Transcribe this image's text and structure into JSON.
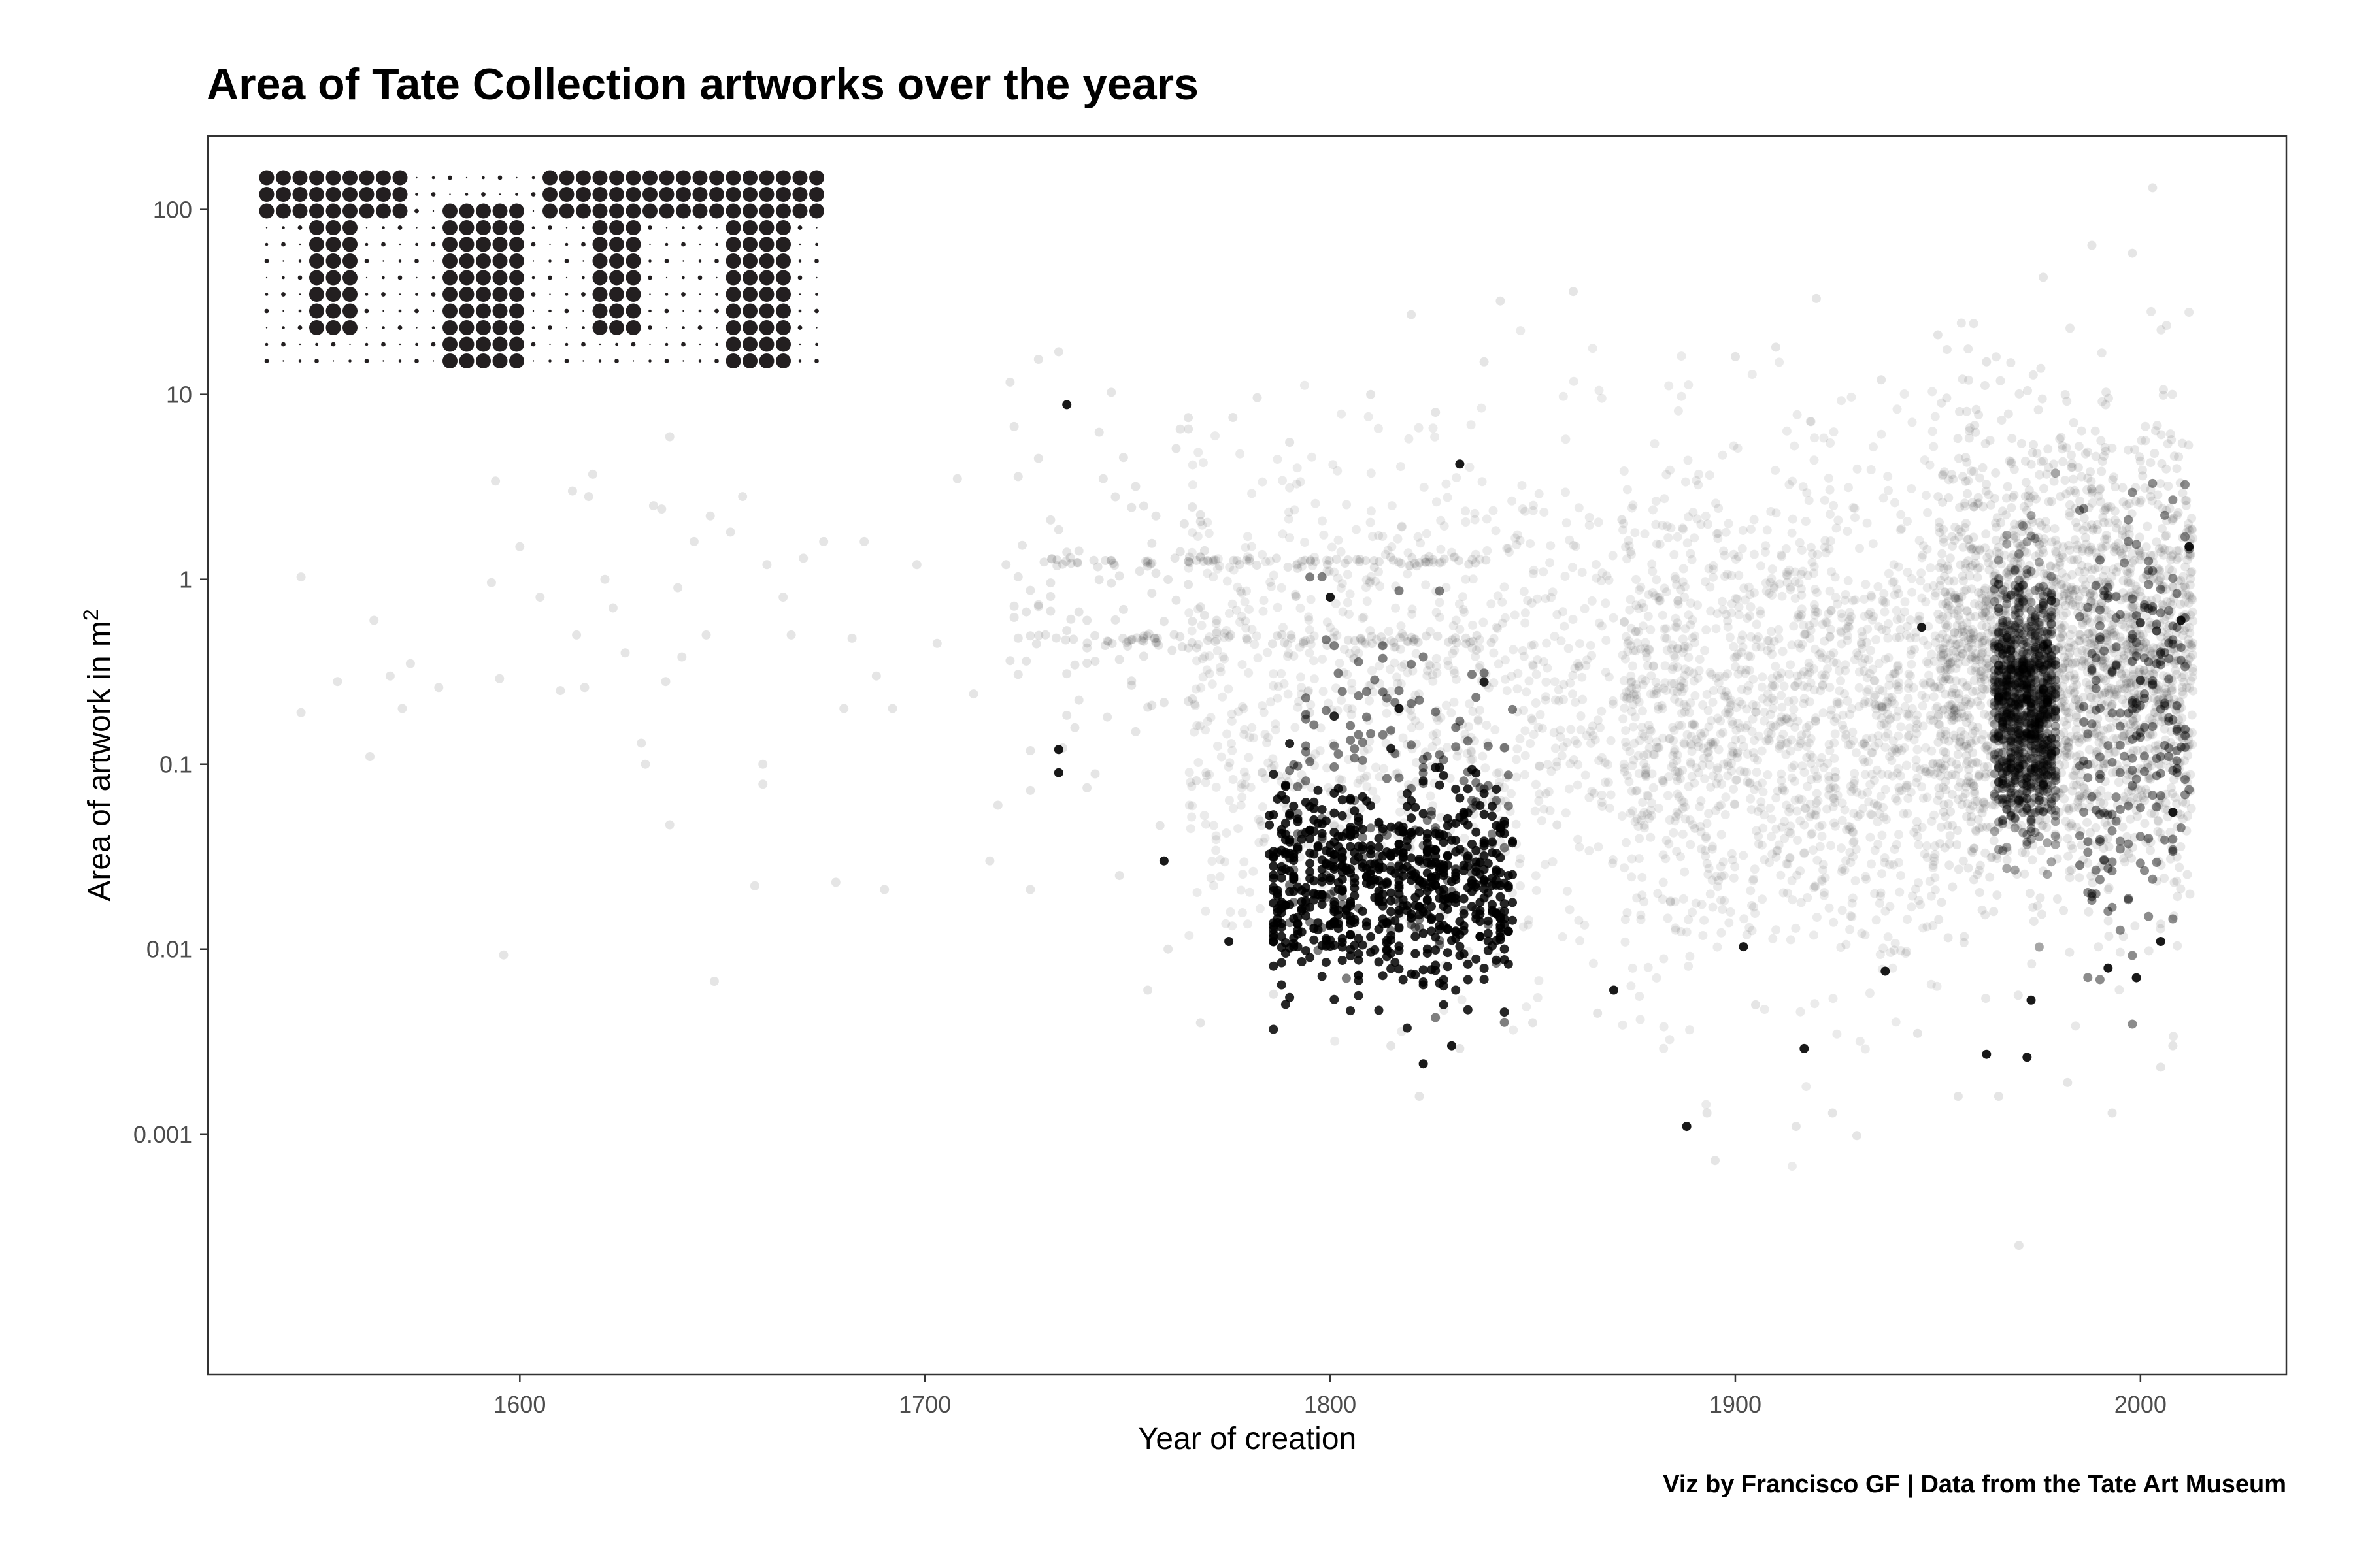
{
  "chart_data": {
    "type": "scatter",
    "title": "Area of Tate Collection artworks over the years",
    "xlabel": "Year of creation",
    "ylabel_text": "Area of artwork in  m",
    "ylabel_superscript": "2",
    "caption": "Viz by Francisco GF | Data from the Tate Art Museum",
    "x_scale": "linear",
    "y_scale": "log10",
    "xlim": [
      1523,
      2036
    ],
    "ylim": [
      5e-05,
      250
    ],
    "x_ticks": [
      1600,
      1700,
      1800,
      1900,
      2000
    ],
    "x_tick_labels": [
      "1600",
      "1700",
      "1800",
      "1900",
      "2000"
    ],
    "y_ticks": [
      0.001,
      0.01,
      0.1,
      1,
      10,
      100
    ],
    "y_tick_labels": [
      "0.001",
      "0.01",
      "0.1",
      "1",
      "10",
      "100"
    ],
    "grid": false,
    "panel_border": true,
    "point_color": "#000000",
    "halftone_logo": "TATE",
    "series": [
      {
        "style": "translucent",
        "opacity": 0.1,
        "points": [
          [
            1546,
            1.03
          ],
          [
            1546,
            0.19
          ],
          [
            1555,
            0.28
          ],
          [
            1563,
            0.11
          ],
          [
            1564,
            0.6
          ],
          [
            1568,
            0.3
          ],
          [
            1571,
            0.2
          ],
          [
            1573,
            0.35
          ],
          [
            1580,
            0.26
          ],
          [
            1593,
            0.96
          ],
          [
            1594,
            3.4
          ],
          [
            1595,
            0.29
          ],
          [
            1596,
            0.0093
          ],
          [
            1600,
            1.5
          ],
          [
            1605,
            0.8
          ],
          [
            1610,
            0.25
          ],
          [
            1613,
            3.0
          ],
          [
            1614,
            0.5
          ],
          [
            1616,
            0.26
          ],
          [
            1617,
            2.8
          ],
          [
            1618,
            3.7
          ],
          [
            1621,
            1.0
          ],
          [
            1623,
            0.7
          ],
          [
            1626,
            0.4
          ],
          [
            1630,
            0.13
          ],
          [
            1631,
            0.1
          ],
          [
            1633,
            2.5
          ],
          [
            1635,
            2.4
          ],
          [
            1636,
            0.28
          ],
          [
            1637,
            5.9
          ],
          [
            1637,
            0.047
          ],
          [
            1639,
            0.9
          ],
          [
            1640,
            0.38
          ],
          [
            1643,
            1.6
          ],
          [
            1646,
            0.5
          ],
          [
            1647,
            2.2
          ],
          [
            1648,
            0.0067
          ],
          [
            1652,
            1.8
          ],
          [
            1655,
            2.8
          ],
          [
            1658,
            0.022
          ],
          [
            1660,
            0.1
          ],
          [
            1660,
            0.078
          ],
          [
            1661,
            1.2
          ],
          [
            1665,
            0.8
          ],
          [
            1667,
            0.5
          ],
          [
            1670,
            1.3
          ],
          [
            1675,
            1.6
          ],
          [
            1678,
            0.023
          ],
          [
            1680,
            0.2
          ],
          [
            1682,
            0.48
          ],
          [
            1685,
            1.6
          ],
          [
            1688,
            0.3
          ],
          [
            1690,
            0.021
          ],
          [
            1692,
            0.2
          ],
          [
            1698,
            1.2
          ],
          [
            1703,
            0.45
          ],
          [
            1708,
            3.5
          ],
          [
            1712,
            0.24
          ],
          [
            1716,
            0.03
          ],
          [
            1718,
            0.06
          ],
          [
            1720,
            1.2
          ],
          [
            1722,
            6.7
          ],
          [
            1726,
            0.021
          ],
          [
            1733,
            17
          ],
          [
            1733,
            0.12
          ],
          [
            1735,
            1.4
          ],
          [
            1740,
            0.6
          ],
          [
            1744,
            3.5
          ],
          [
            1748,
            0.025
          ],
          [
            1752,
            0.15
          ],
          [
            1755,
            0.006
          ],
          [
            1757,
            2.2
          ],
          [
            1760,
            0.01
          ],
          [
            1765,
            6.5
          ],
          [
            1768,
            0.004
          ],
          [
            1772,
            0.6
          ],
          [
            1776,
            7.5
          ],
          [
            1782,
            9.6
          ],
          [
            1786,
            0.0057
          ],
          [
            1790,
            5.5
          ],
          [
            1795,
            0.19
          ],
          [
            1810,
            10
          ],
          [
            1815,
            0.003
          ],
          [
            1820,
            27
          ],
          [
            1822,
            0.0016
          ],
          [
            1826,
            8
          ],
          [
            1832,
            0.0029
          ],
          [
            1838,
            15
          ],
          [
            1842,
            32
          ],
          [
            1850,
            0.004
          ],
          [
            1856,
            0.047
          ],
          [
            1860,
            36
          ],
          [
            1866,
            0.0045
          ],
          [
            1872,
            2.1
          ],
          [
            1878,
            0.4
          ],
          [
            1884,
            0.018
          ],
          [
            1890,
            0.045
          ],
          [
            1893,
            0.0013
          ],
          [
            1895,
            0.00072
          ],
          [
            1900,
            16
          ],
          [
            1905,
            0.005
          ],
          [
            1910,
            18
          ],
          [
            1915,
            0.0011
          ],
          [
            1920,
            33
          ],
          [
            1924,
            0.0013
          ],
          [
            1930,
            0.00098
          ],
          [
            1936,
            12
          ],
          [
            1945,
            0.0035
          ],
          [
            1950,
            21
          ],
          [
            1955,
            0.0016
          ],
          [
            1962,
            15
          ],
          [
            1965,
            0.0016
          ],
          [
            1970,
            0.00025
          ],
          [
            1976,
            43
          ],
          [
            1982,
            0.0019
          ],
          [
            1988,
            64
          ],
          [
            1993,
            0.0013
          ],
          [
            1998,
            58
          ],
          [
            2003,
            131
          ],
          [
            2005,
            0.0023
          ],
          [
            2008,
            0.003
          ]
        ]
      },
      {
        "style": "opaque",
        "opacity": 0.9,
        "points": [
          [
            1733,
            0.12
          ],
          [
            1733,
            0.09
          ],
          [
            1735,
            8.8
          ],
          [
            1759,
            0.03
          ],
          [
            1775,
            0.011
          ],
          [
            1800,
            0.8
          ],
          [
            1817,
            0.2
          ],
          [
            1823,
            0.0024
          ],
          [
            1830,
            0.003
          ],
          [
            1832,
            4.2
          ],
          [
            1870,
            0.006
          ],
          [
            1888,
            0.0011
          ],
          [
            1902,
            0.0103
          ],
          [
            1917,
            0.0029
          ],
          [
            1937,
            0.0076
          ],
          [
            1962,
            0.0027
          ],
          [
            1972,
            0.0026
          ],
          [
            1973,
            0.0053
          ],
          [
            1999,
            0.007
          ],
          [
            2008,
            0.055
          ],
          [
            2012,
            1.5
          ],
          [
            2010,
            0.6
          ],
          [
            2005,
            0.011
          ],
          [
            1992,
            0.0079
          ],
          [
            1946,
            0.55
          ]
        ]
      }
    ]
  }
}
